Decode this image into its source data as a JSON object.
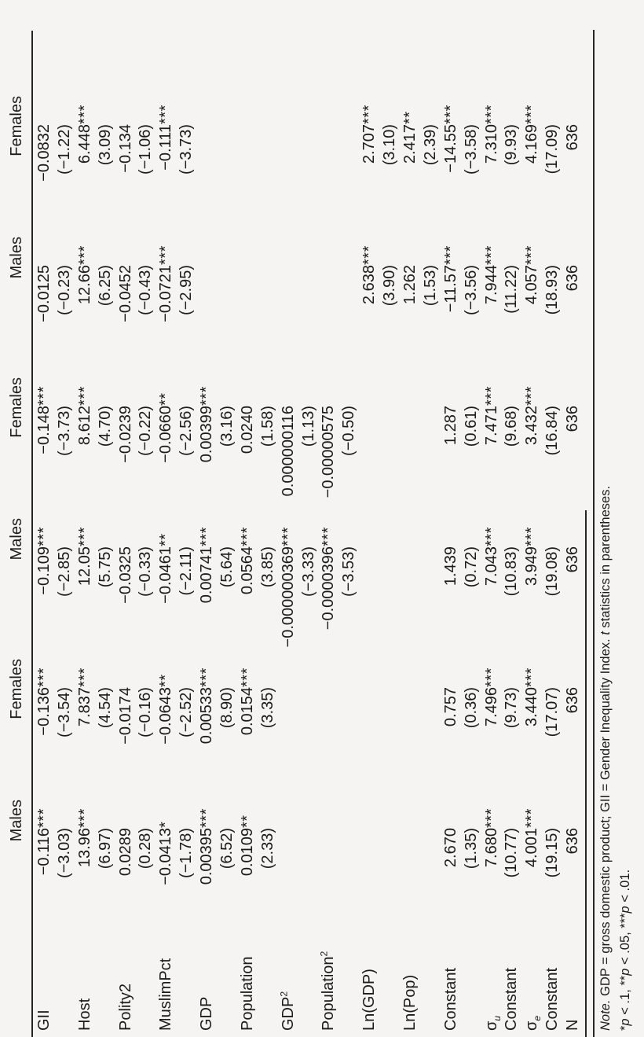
{
  "page": {
    "background_color": "#f5f4f2",
    "text_color": "#1a1a1a",
    "rule_color": "#252525",
    "orientation_note": "table printed rotated 90 degrees counterclockwise"
  },
  "table": {
    "column_headers": [
      "Males",
      "Females",
      "Males",
      "Females",
      "Males",
      "Females"
    ],
    "rows": [
      {
        "label": "GII",
        "cells": [
          {
            "v": "−0.116",
            "s": "***"
          },
          {
            "v": "−0.136",
            "s": "***"
          },
          {
            "v": "−0.109",
            "s": "***"
          },
          {
            "v": "−0.148",
            "s": "***"
          },
          {
            "v": "−0.0125"
          },
          {
            "v": "−0.0832"
          }
        ]
      },
      {
        "label": "",
        "cells": [
          {
            "v": "(−3.03)"
          },
          {
            "v": "(−3.54)"
          },
          {
            "v": "(−2.85)"
          },
          {
            "v": "(−3.73)"
          },
          {
            "v": "(−0.23)"
          },
          {
            "v": "(−1.22)"
          }
        ]
      },
      {
        "label": "Host",
        "cells": [
          {
            "v": "13.96",
            "s": "***"
          },
          {
            "v": "7.837",
            "s": "***"
          },
          {
            "v": "12.05",
            "s": "***"
          },
          {
            "v": "8.612",
            "s": "***"
          },
          {
            "v": "12.66",
            "s": "***"
          },
          {
            "v": "6.448",
            "s": "***"
          }
        ]
      },
      {
        "label": "",
        "cells": [
          {
            "v": "(6.97)"
          },
          {
            "v": "(4.54)"
          },
          {
            "v": "(5.75)"
          },
          {
            "v": "(4.70)"
          },
          {
            "v": "(6.25)"
          },
          {
            "v": "(3.09)"
          }
        ]
      },
      {
        "label": "Polity2",
        "cells": [
          {
            "v": "0.0289"
          },
          {
            "v": "−0.0174"
          },
          {
            "v": "−0.0325"
          },
          {
            "v": "−0.0239"
          },
          {
            "v": "−0.0452"
          },
          {
            "v": "−0.134"
          }
        ]
      },
      {
        "label": "",
        "cells": [
          {
            "v": "(0.28)"
          },
          {
            "v": "(−0.16)"
          },
          {
            "v": "(−0.33)"
          },
          {
            "v": "(−0.22)"
          },
          {
            "v": "(−0.43)"
          },
          {
            "v": "(−1.06)"
          }
        ]
      },
      {
        "label": "MuslimPct",
        "cells": [
          {
            "v": "−0.0413",
            "s": "*"
          },
          {
            "v": "−0.0643",
            "s": "**"
          },
          {
            "v": "−0.0461",
            "s": "**"
          },
          {
            "v": "−0.0660",
            "s": "**"
          },
          {
            "v": "−0.0721",
            "s": "***"
          },
          {
            "v": "−0.111",
            "s": "***"
          }
        ]
      },
      {
        "label": "",
        "cells": [
          {
            "v": "(−1.78)"
          },
          {
            "v": "(−2.52)"
          },
          {
            "v": "(−2.11)"
          },
          {
            "v": "(−2.56)"
          },
          {
            "v": "(−2.95)"
          },
          {
            "v": "(−3.73)"
          }
        ]
      },
      {
        "label": "GDP",
        "cells": [
          {
            "v": "0.00395",
            "s": "***"
          },
          {
            "v": "0.00533",
            "s": "***"
          },
          {
            "v": "0.00741",
            "s": "***"
          },
          {
            "v": "0.00399",
            "s": "***"
          },
          {},
          {}
        ]
      },
      {
        "label": "",
        "cells": [
          {
            "v": "(6.52)"
          },
          {
            "v": "(8.90)"
          },
          {
            "v": "(5.64)"
          },
          {
            "v": "(3.16)"
          },
          {},
          {}
        ]
      },
      {
        "label": "Population",
        "cells": [
          {
            "v": "0.0109",
            "s": "**"
          },
          {
            "v": "0.0154",
            "s": "***"
          },
          {
            "v": "0.0564",
            "s": "***"
          },
          {
            "v": "0.0240"
          },
          {},
          {}
        ]
      },
      {
        "label": "",
        "cells": [
          {
            "v": "(2.33)"
          },
          {
            "v": "(3.35)"
          },
          {
            "v": "(3.85)"
          },
          {
            "v": "(1.58)"
          },
          {},
          {}
        ]
      },
      {
        "label": "GDP",
        "sup": "2",
        "cells": [
          {},
          {},
          {
            "v": "−0.000000369",
            "s": "***"
          },
          {
            "v": "0.000000116"
          },
          {},
          {}
        ]
      },
      {
        "label": "",
        "cells": [
          {},
          {},
          {
            "v": "(−3.33)"
          },
          {
            "v": "(1.13)"
          },
          {},
          {}
        ]
      },
      {
        "label": "Population",
        "sup": "2",
        "cells": [
          {},
          {},
          {
            "v": "−0.0000396",
            "s": "***"
          },
          {
            "v": "−0.00000575"
          },
          {},
          {}
        ]
      },
      {
        "label": "",
        "cells": [
          {},
          {},
          {
            "v": "(−3.53)"
          },
          {
            "v": "(−0.50)"
          },
          {},
          {}
        ]
      },
      {
        "label": "Ln(GDP)",
        "cells": [
          {},
          {},
          {},
          {},
          {
            "v": "2.638",
            "s": "***"
          },
          {
            "v": "2.707",
            "s": "***"
          }
        ]
      },
      {
        "label": "",
        "cells": [
          {},
          {},
          {},
          {},
          {
            "v": "(3.90)"
          },
          {
            "v": "(3.10)"
          }
        ]
      },
      {
        "label": "Ln(Pop)",
        "cells": [
          {},
          {},
          {},
          {},
          {
            "v": "1.262"
          },
          {
            "v": "2.417",
            "s": "**"
          }
        ]
      },
      {
        "label": "",
        "cells": [
          {},
          {},
          {},
          {},
          {
            "v": "(1.53)"
          },
          {
            "v": "(2.39)"
          }
        ]
      },
      {
        "label": "Constant",
        "cells": [
          {
            "v": "2.670"
          },
          {
            "v": "0.757"
          },
          {
            "v": "1.439"
          },
          {
            "v": "1.287"
          },
          {
            "v": "−11.57",
            "s": "***"
          },
          {
            "v": "−14.55",
            "s": "***"
          }
        ]
      },
      {
        "label": "",
        "cells": [
          {
            "v": "(1.35)"
          },
          {
            "v": "(0.36)"
          },
          {
            "v": "(0.72)"
          },
          {
            "v": "(0.61)"
          },
          {
            "v": "(−3.56)"
          },
          {
            "v": "(−3.58)"
          }
        ]
      },
      {
        "label": "σ",
        "sub": "u",
        "cells": [
          {
            "v": "7.680",
            "s": "***"
          },
          {
            "v": "7.496",
            "s": "***"
          },
          {
            "v": "7.043",
            "s": "***"
          },
          {
            "v": "7.471",
            "s": "***"
          },
          {
            "v": "7.944",
            "s": "***"
          },
          {
            "v": "7.310",
            "s": "***"
          }
        ]
      },
      {
        "label": "Constant",
        "cells": [
          {
            "v": "(10.77)"
          },
          {
            "v": "(9.73)"
          },
          {
            "v": "(10.83)"
          },
          {
            "v": "(9.68)"
          },
          {
            "v": "(11.22)"
          },
          {
            "v": "(9.93)"
          }
        ]
      },
      {
        "label": "σ",
        "sub": "e",
        "cells": [
          {
            "v": "4.001",
            "s": "***"
          },
          {
            "v": "3.440",
            "s": "***"
          },
          {
            "v": "3.949",
            "s": "***"
          },
          {
            "v": "3.432",
            "s": "***"
          },
          {
            "v": "4.057",
            "s": "***"
          },
          {
            "v": "4.169",
            "s": "***"
          }
        ]
      },
      {
        "label": "Constant",
        "cells": [
          {
            "v": "(19.15)"
          },
          {
            "v": "(17.07)"
          },
          {
            "v": "(19.08)"
          },
          {
            "v": "(16.84)"
          },
          {
            "v": "(18.93)"
          },
          {
            "v": "(17.09)"
          }
        ]
      },
      {
        "label": "N",
        "cells": [
          {
            "v": "636"
          },
          {
            "v": "636"
          },
          {
            "v": "636"
          },
          {
            "v": "636"
          },
          {
            "v": "636"
          },
          {
            "v": "636"
          }
        ]
      }
    ],
    "note_line1": [
      {
        "t": "Note.",
        "i": true
      },
      {
        "t": " GDP = gross domestic product; GII = Gender Inequality Index. "
      },
      {
        "t": "t",
        "i": true
      },
      {
        "t": " statistics in parentheses."
      }
    ],
    "note_line2": [
      {
        "t": "*"
      },
      {
        "t": "p",
        "i": true
      },
      {
        "t": " < .1, **"
      },
      {
        "t": "p",
        "i": true
      },
      {
        "t": " < .05, ***"
      },
      {
        "t": "p",
        "i": true
      },
      {
        "t": " < .01."
      }
    ]
  }
}
